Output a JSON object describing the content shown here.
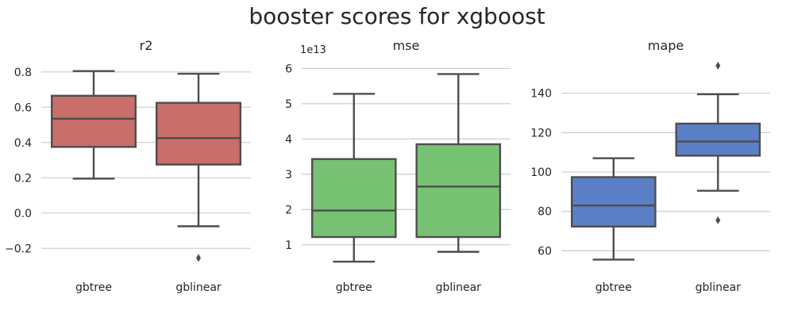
{
  "figure": {
    "title": "booster scores for xgboost"
  },
  "chart_data": [
    {
      "type": "box",
      "title": "r2",
      "categories": [
        "gbtree",
        "gblinear"
      ],
      "color": "#c96f6b",
      "ylim": [
        -0.32,
        0.88
      ],
      "yticks": [
        -0.2,
        0.0,
        0.2,
        0.4,
        0.6,
        0.8
      ],
      "ytick_labels": [
        "−0.2",
        "0.0",
        "0.2",
        "0.4",
        "0.6",
        "0.8"
      ],
      "offset_label": "",
      "grid": true,
      "boxes": [
        {
          "min": 0.195,
          "q1": 0.375,
          "median": 0.535,
          "q3": 0.665,
          "max": 0.805,
          "fliers": []
        },
        {
          "min": -0.075,
          "q1": 0.275,
          "median": 0.425,
          "q3": 0.625,
          "max": 0.79,
          "fliers": [
            -0.255
          ]
        }
      ]
    },
    {
      "type": "box",
      "title": "mse",
      "categories": [
        "gbtree",
        "gblinear"
      ],
      "color": "#77c272",
      "ylim": [
        0.3,
        6.3
      ],
      "yticks": [
        1,
        2,
        3,
        4,
        5,
        6
      ],
      "ytick_labels": [
        "1",
        "2",
        "3",
        "4",
        "5",
        "6"
      ],
      "offset_label": "1e13",
      "grid": true,
      "boxes": [
        {
          "min": 0.52,
          "q1": 1.22,
          "median": 1.97,
          "q3": 3.43,
          "max": 5.28,
          "fliers": []
        },
        {
          "min": 0.8,
          "q1": 1.22,
          "median": 2.65,
          "q3": 3.85,
          "max": 5.84,
          "fliers": []
        }
      ]
    },
    {
      "type": "box",
      "title": "mape",
      "categories": [
        "gbtree",
        "gblinear"
      ],
      "color": "#5b7fc7",
      "ylim": [
        50.5,
        158
      ],
      "yticks": [
        60,
        80,
        100,
        120,
        140
      ],
      "ytick_labels": [
        "60",
        "80",
        "100",
        "120",
        "140"
      ],
      "offset_label": "",
      "grid": true,
      "boxes": [
        {
          "min": 55.5,
          "q1": 72.3,
          "median": 83,
          "q3": 97.4,
          "max": 107,
          "fliers": []
        },
        {
          "min": 90.5,
          "q1": 108.3,
          "median": 115.5,
          "q3": 124.6,
          "max": 139.5,
          "fliers": [
            75.5,
            154
          ]
        }
      ]
    }
  ]
}
